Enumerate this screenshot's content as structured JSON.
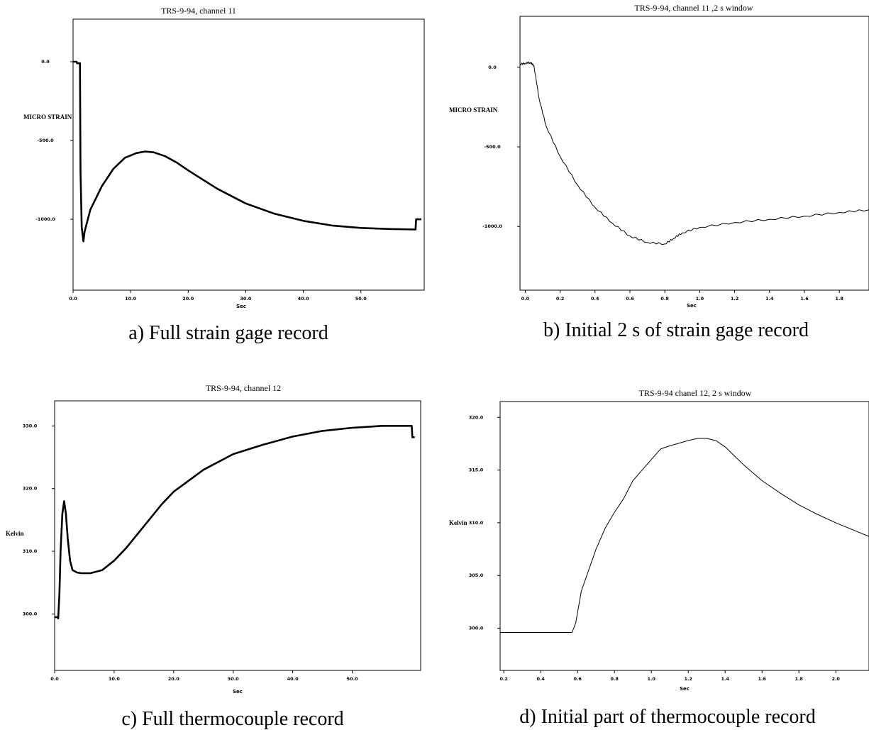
{
  "chart_data": [
    {
      "type": "line",
      "panel_caption": "a) Full strain gage record",
      "title": "TRS-9-94, channel 11",
      "xlabel": "Sec",
      "ylabel": "MICRO STRAIN",
      "xlim": [
        0,
        61
      ],
      "ylim": [
        -1450,
        270
      ],
      "xticks": [
        0,
        10,
        20,
        30,
        40,
        50
      ],
      "xtick_labels": [
        "0.0",
        "10.0",
        "20.0",
        "30.0",
        "40.0",
        "50.0"
      ],
      "yticks": [
        0,
        -500,
        -1000
      ],
      "ytick_labels": [
        "0.0",
        "-500.0",
        "-1000.0"
      ],
      "series": [
        {
          "x": [
            0,
            0.6,
            0.7,
            1.2,
            1.3,
            1.5,
            1.8,
            2.0,
            3.0,
            5.0,
            7.0,
            9.0,
            11.0,
            12.5,
            14.0,
            16.0,
            18.0,
            20.0,
            25.0,
            30.0,
            35.0,
            40.0,
            45.0,
            50.0,
            55.0,
            59.5,
            59.6,
            60.5
          ],
          "y": [
            0,
            0,
            -10,
            -10,
            -700,
            -1050,
            -1140,
            -1080,
            -940,
            -790,
            -680,
            -610,
            -580,
            -570,
            -575,
            -600,
            -640,
            -690,
            -805,
            -900,
            -965,
            -1010,
            -1040,
            -1055,
            -1062,
            -1065,
            -1000,
            -1000
          ]
        }
      ]
    },
    {
      "type": "line",
      "panel_caption": "b) Initial 2 s of strain gage record",
      "title": "TRS-9-94, channel 11 ,2 s window",
      "xlabel": "Sec",
      "ylabel": "MICRO STRAIN",
      "xlim": [
        -0.03,
        1.97
      ],
      "ylim": [
        -1400,
        320
      ],
      "xticks": [
        0,
        0.2,
        0.4,
        0.6,
        0.8,
        1.0,
        1.2,
        1.4,
        1.6,
        1.8
      ],
      "xtick_labels": [
        "0.0",
        "0.2",
        "0.4",
        "0.6",
        "0.8",
        "1.0",
        "1.2",
        "1.4",
        "1.6",
        "1.8"
      ],
      "yticks": [
        0,
        -500,
        -1000
      ],
      "ytick_labels": [
        "0.0",
        "-500.0",
        "-1000.0"
      ],
      "series": [
        {
          "x": [
            -0.03,
            0.0,
            0.03,
            0.05,
            0.08,
            0.12,
            0.2,
            0.3,
            0.4,
            0.5,
            0.6,
            0.7,
            0.8,
            0.85,
            0.9,
            1.0,
            1.2,
            1.4,
            1.6,
            1.8,
            1.97
          ],
          "y": [
            20,
            25,
            30,
            10,
            -200,
            -370,
            -560,
            -740,
            -880,
            -980,
            -1060,
            -1100,
            -1110,
            -1075,
            -1040,
            -1005,
            -975,
            -955,
            -935,
            -912,
            -895
          ]
        }
      ]
    },
    {
      "type": "line",
      "panel_caption": "c) Full thermocouple record",
      "title": "TRS-9-94, channel 12",
      "xlabel": "Sec",
      "ylabel": "Kelvin",
      "xlim": [
        0,
        61.5
      ],
      "ylim": [
        291,
        334
      ],
      "xticks": [
        0,
        10,
        20,
        30,
        40,
        50
      ],
      "xtick_labels": [
        "0.0",
        "10.0",
        "20.0",
        "30.0",
        "40.0",
        "50.0"
      ],
      "yticks": [
        300,
        310,
        320,
        330
      ],
      "ytick_labels": [
        "300.0",
        "310.0",
        "320.0",
        "330.0"
      ],
      "series": [
        {
          "x": [
            0,
            0.5,
            0.6,
            0.8,
            1.0,
            1.3,
            1.6,
            1.9,
            2.2,
            2.6,
            3.0,
            3.8,
            4.5,
            6.0,
            8.0,
            10.0,
            12.0,
            15.0,
            18.0,
            20.0,
            25.0,
            30.0,
            35.0,
            40.0,
            45.0,
            50.0,
            55.0,
            60.0,
            60.1,
            60.5
          ],
          "y": [
            299.5,
            299.5,
            299.3,
            303,
            310,
            316,
            318,
            316,
            312,
            308.5,
            307,
            306.6,
            306.5,
            306.5,
            307,
            308.5,
            310.5,
            314,
            317.5,
            319.5,
            323,
            325.5,
            327,
            328.3,
            329.2,
            329.7,
            330,
            330,
            328.2,
            328.2
          ]
        }
      ]
    },
    {
      "type": "line",
      "panel_caption": "d) Initial part of thermocouple record",
      "title": "TRS-9-94 chanel 12, 2 s window",
      "xlabel": "Sec",
      "ylabel": "Kelvin",
      "xlim": [
        0.18,
        2.18
      ],
      "ylim": [
        296,
        321.5
      ],
      "xticks": [
        0.2,
        0.4,
        0.6,
        0.8,
        1.0,
        1.2,
        1.4,
        1.6,
        1.8,
        2.0
      ],
      "xtick_labels": [
        "0.2",
        "0.4",
        "0.6",
        "0.8",
        "1.0",
        "1.2",
        "1.4",
        "1.6",
        "1.8",
        "2.0"
      ],
      "yticks": [
        300,
        305,
        310,
        315,
        320
      ],
      "ytick_labels": [
        "300.0",
        "305.0",
        "310.0",
        "315.0",
        "320.0"
      ],
      "series": [
        {
          "x": [
            0.18,
            0.3,
            0.4,
            0.5,
            0.57,
            0.59,
            0.62,
            0.65,
            0.7,
            0.75,
            0.8,
            0.85,
            0.9,
            0.95,
            1.0,
            1.05,
            1.1,
            1.2,
            1.25,
            1.3,
            1.35,
            1.4,
            1.5,
            1.6,
            1.7,
            1.8,
            1.9,
            2.0,
            2.18
          ],
          "y": [
            299.6,
            299.6,
            299.6,
            299.6,
            299.6,
            300.5,
            303.5,
            305,
            307.5,
            309.5,
            311,
            312.3,
            314,
            315,
            316,
            317,
            317.3,
            317.8,
            318,
            318,
            317.8,
            317.2,
            315.5,
            314,
            312.8,
            311.7,
            310.8,
            310,
            308.7
          ]
        }
      ]
    }
  ]
}
